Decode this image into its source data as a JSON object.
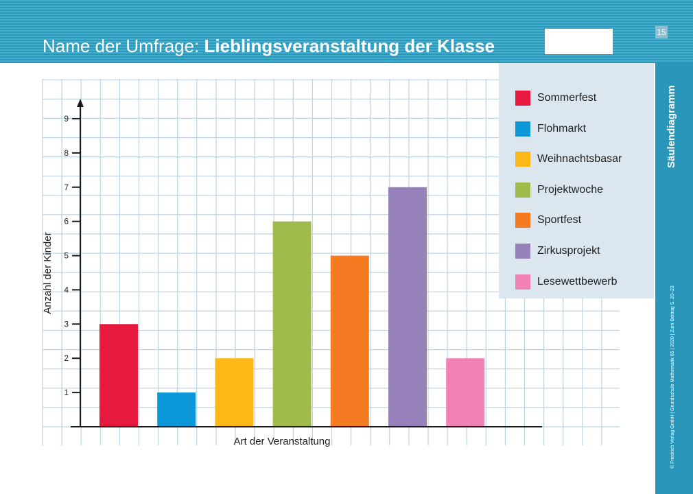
{
  "header": {
    "title_prefix": "Name der Umfrage:",
    "title_main": "Lieblingsveranstaltung der Klasse",
    "page_number": "15"
  },
  "sidebar": {
    "title": "Säulendiagramm",
    "credit": "© Friedrich Verlag GmbH | Grundschule Mathematik 65 | 2020 | Zum Beitrag S. 20–23"
  },
  "colors": {
    "header": "#2a97ba",
    "legend_bg": "#dbe6ef",
    "grid": "#bcd3e1"
  },
  "chart_data": {
    "type": "bar",
    "xlabel": "Art der Veranstaltung",
    "ylabel": "Anzahl der Kinder",
    "ylim": [
      0,
      9
    ],
    "yticks": [
      1,
      2,
      3,
      4,
      5,
      6,
      7,
      8,
      9
    ],
    "grid": true,
    "legend_position": "top-right",
    "categories": [
      "Sommerfest",
      "Flohmarkt",
      "Weihnachtsbasar",
      "Projektwoche",
      "Sportfest",
      "Zirkusprojekt",
      "Lesewettbewerb"
    ],
    "values": [
      3,
      1,
      2,
      6,
      5,
      7,
      2
    ],
    "colors": [
      "#e8193f",
      "#0c98d8",
      "#fbb816",
      "#a0bb4b",
      "#f47b21",
      "#9681bb",
      "#f182b3"
    ]
  }
}
